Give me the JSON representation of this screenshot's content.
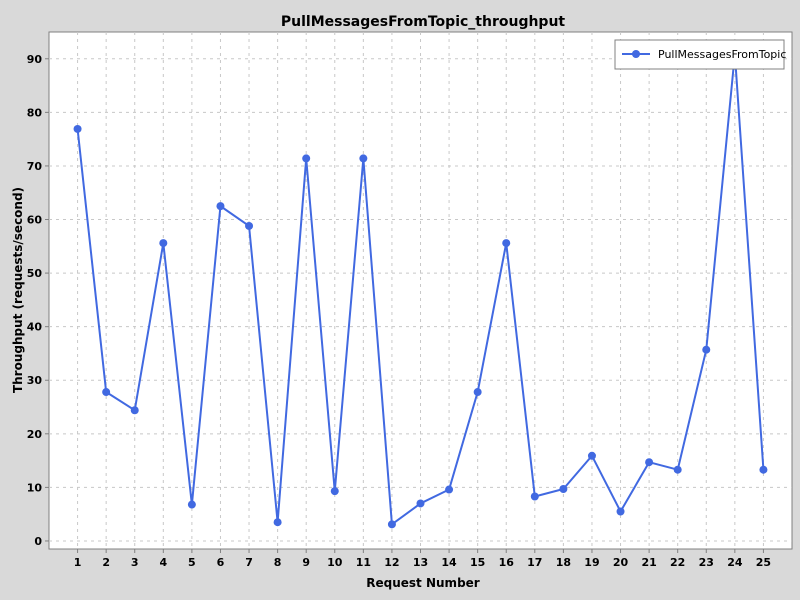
{
  "chart_data": {
    "type": "line",
    "title": "PullMessagesFromTopic_throughput",
    "xlabel": "Request Number",
    "ylabel": "Throughput (requests/second)",
    "x": [
      1,
      2,
      3,
      4,
      5,
      6,
      7,
      8,
      9,
      10,
      11,
      12,
      13,
      14,
      15,
      16,
      17,
      18,
      19,
      20,
      21,
      22,
      23,
      24,
      25
    ],
    "xlim": [
      0,
      26
    ],
    "ylim": [
      -1.5,
      95
    ],
    "yticks": [
      0,
      10,
      20,
      30,
      40,
      50,
      60,
      70,
      80,
      90
    ],
    "grid": true,
    "legend_position": "top-right",
    "series": [
      {
        "name": "PullMessagesFromTopic",
        "color": "#4169e1",
        "values": [
          76.9,
          27.8,
          24.4,
          55.6,
          6.8,
          62.5,
          58.8,
          3.5,
          71.4,
          9.3,
          71.4,
          3.1,
          7.0,
          9.6,
          27.8,
          55.6,
          8.3,
          9.7,
          15.9,
          5.5,
          14.7,
          13.3,
          35.7,
          90.9,
          13.3
        ]
      }
    ]
  }
}
